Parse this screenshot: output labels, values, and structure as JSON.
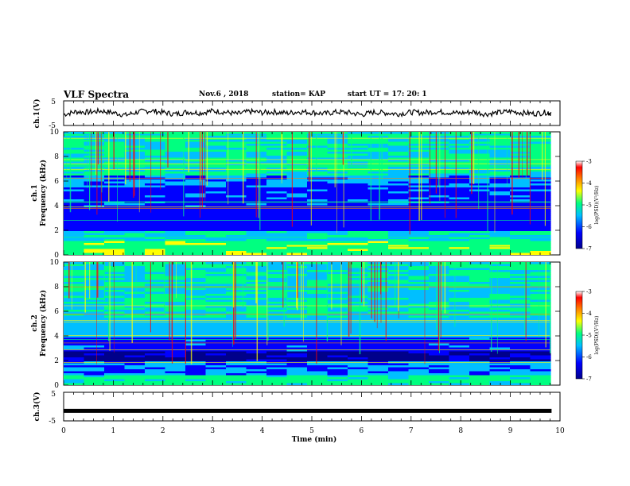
{
  "header": {
    "title": "VLF Spectra",
    "date": "Nov.6 , 2018",
    "station": "station= KAP",
    "start": "start UT = 17: 20: 1"
  },
  "colors": {
    "colormap": [
      "#00008b",
      "#0000ff",
      "#00bfff",
      "#00ff80",
      "#ffff00",
      "#ff8000",
      "#ff0000",
      "#ffffff"
    ],
    "trace": "#000000"
  },
  "chart_data": [
    {
      "type": "line",
      "panel": "ch1",
      "ylabel": "ch.1(V)",
      "ylim": [
        -5,
        5
      ],
      "yticks": [
        "5",
        "-5"
      ],
      "xlim": [
        0,
        10
      ],
      "series": [
        {
          "x": [
            0,
            0.25,
            0.5,
            0.75,
            1.0,
            1.25,
            1.5,
            1.75,
            2.0,
            2.25,
            2.5,
            2.75,
            3.0,
            3.25,
            3.5,
            3.75,
            4.0,
            4.25,
            4.5,
            4.75,
            5.0,
            5.25,
            5.5,
            5.75,
            6.0,
            6.25,
            6.5,
            6.75,
            7.0,
            7.25,
            7.5,
            7.75,
            8.0,
            8.25,
            8.5,
            8.75,
            9.0,
            9.25,
            9.5,
            9.75,
            9.83
          ],
          "y": [
            -0.5,
            0.6,
            0.4,
            0.9,
            0.2,
            -0.8,
            0.5,
            1.0,
            0.3,
            -0.4,
            0.5,
            0.1,
            0.9,
            0.4,
            -0.3,
            0.7,
            0.2,
            0.5,
            0.0,
            0.6,
            0.3,
            -0.2,
            0.5,
            0.2,
            -0.6,
            0.4,
            0.1,
            -0.3,
            0.4,
            0.2,
            0.6,
            0.3,
            0.0,
            0.5,
            -0.4,
            0.2,
            0.7,
            0.1,
            -0.2,
            0.4,
            -0.3
          ]
        }
      ]
    },
    {
      "type": "heatmap",
      "panel": "ch1-spectrogram",
      "ylabel": "ch.1",
      "ylabel2": "Frequency (kHz)",
      "ylim": [
        0,
        10
      ],
      "yticks": [
        "0",
        "2",
        "4",
        "6",
        "8",
        "10"
      ],
      "xlim": [
        0,
        10
      ],
      "colorbar": {
        "label": "log(PSD)(V²/Hz)",
        "range": [
          -7,
          -3
        ],
        "ticks": [
          "-3",
          "-4",
          "-5",
          "-6",
          "-7"
        ]
      }
    },
    {
      "type": "heatmap",
      "panel": "ch2-spectrogram",
      "ylabel": "ch.2",
      "ylabel2": "Frequency (kHz)",
      "ylim": [
        0,
        10
      ],
      "yticks": [
        "0",
        "2",
        "4",
        "6",
        "8",
        "10"
      ],
      "xlim": [
        0,
        10
      ],
      "colorbar": {
        "label": "log(PSD)(V²/Hz)",
        "range": [
          -7,
          -3
        ],
        "ticks": [
          "-3",
          "-4",
          "-5",
          "-6",
          "-7"
        ]
      }
    },
    {
      "type": "line",
      "panel": "ch3",
      "ylabel": "ch.3(V)",
      "ylim": [
        -5,
        5
      ],
      "yticks": [
        "5",
        "-5"
      ],
      "xlim": [
        0,
        10
      ],
      "xlabel": "Time (min)",
      "xticks": [
        "0",
        "1",
        "2",
        "3",
        "4",
        "5",
        "6",
        "7",
        "8",
        "9",
        "10"
      ],
      "series": [
        {
          "x": [
            0,
            9.83
          ],
          "y": [
            -1.5,
            -1.5
          ]
        }
      ]
    }
  ]
}
